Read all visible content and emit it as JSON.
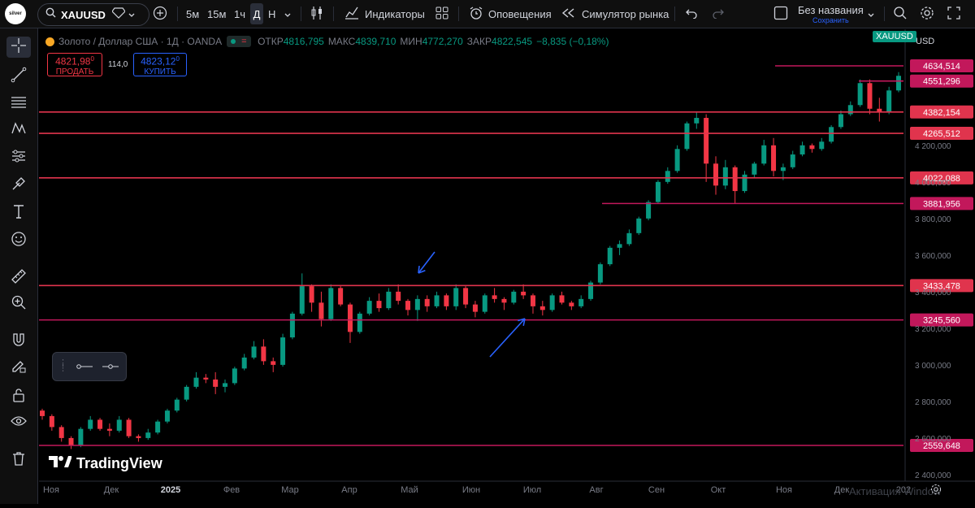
{
  "toolbar": {
    "logo_text": "silver\ncurrency",
    "symbol": "XAUUSD",
    "intervals": [
      "5м",
      "15м",
      "1ч",
      "Д",
      "Н"
    ],
    "active_interval": "Д",
    "indicators_label": "Индикаторы",
    "alerts_label": "Оповещения",
    "replay_label": "Симулятор рынка",
    "layout_name": "Без названия",
    "layout_status": "Сохранить"
  },
  "legend": {
    "title": "Золото / Доллар США · 1Д · OANDA",
    "open_label": "ОТКР",
    "open": "4816,795",
    "high_label": "МАКС",
    "high": "4839,710",
    "low_label": "МИН",
    "low": "4772,270",
    "close_label": "ЗАКР",
    "close": "4822,545",
    "change": "−8,835 (−0,18%)"
  },
  "trade": {
    "sell_price": "4821,98",
    "sell_sup": "0",
    "sell_label": "ПРОДАТЬ",
    "spread": "114,0",
    "buy_price": "4823,12",
    "buy_sup": "0",
    "buy_label": "КУПИТЬ"
  },
  "price_scale": {
    "symbol_tag": "XAUUSD",
    "currency": "USD"
  },
  "watermark": {
    "brand": "TradingView",
    "windows_notice": "Активация Window"
  },
  "colors": {
    "background": "#000000",
    "up": "#089981",
    "down": "#f23645",
    "red_level": "#e0344d",
    "magenta_level": "#c2185b",
    "arrow": "#2962ff"
  },
  "chart_data": {
    "type": "candlestick",
    "instrument": "XAUUSD",
    "timeframe": "1D",
    "ylim": [
      2340,
      4780
    ],
    "y_ticks": [
      2400,
      2600,
      2800,
      3000,
      3200,
      3400,
      3600,
      3800,
      4000,
      4200
    ],
    "x_ticks": [
      "Ноя",
      "Дек",
      "2025",
      "Фев",
      "Мар",
      "Апр",
      "Май",
      "Июн",
      "Июл",
      "Авг",
      "Сен",
      "Окт",
      "Ноя",
      "Дек",
      "202"
    ],
    "series": [
      {
        "values": [
          [
            2750,
            2760,
            2700,
            2720
          ],
          [
            2720,
            2730,
            2640,
            2660
          ],
          [
            2660,
            2670,
            2580,
            2600
          ],
          [
            2600,
            2610,
            2540,
            2560
          ],
          [
            2560,
            2660,
            2550,
            2650
          ],
          [
            2650,
            2720,
            2640,
            2700
          ],
          [
            2700,
            2710,
            2640,
            2650
          ],
          [
            2650,
            2680,
            2610,
            2640
          ],
          [
            2640,
            2720,
            2630,
            2700
          ],
          [
            2700,
            2710,
            2600,
            2610
          ],
          [
            2610,
            2620,
            2580,
            2600
          ],
          [
            2600,
            2650,
            2590,
            2630
          ],
          [
            2630,
            2700,
            2620,
            2690
          ],
          [
            2690,
            2760,
            2680,
            2750
          ],
          [
            2750,
            2820,
            2740,
            2810
          ],
          [
            2810,
            2890,
            2800,
            2880
          ],
          [
            2880,
            2960,
            2870,
            2930
          ],
          [
            2930,
            2950,
            2900,
            2920
          ],
          [
            2920,
            2960,
            2840,
            2880
          ],
          [
            2880,
            2920,
            2850,
            2900
          ],
          [
            2900,
            2990,
            2890,
            2980
          ],
          [
            2980,
            3060,
            2970,
            3040
          ],
          [
            3040,
            3130,
            3030,
            3100
          ],
          [
            3100,
            3140,
            3000,
            3020
          ],
          [
            3020,
            3040,
            2960,
            3000
          ],
          [
            3000,
            3170,
            2990,
            3150
          ],
          [
            3150,
            3290,
            3140,
            3280
          ],
          [
            3280,
            3500,
            3270,
            3430
          ],
          [
            3430,
            3440,
            3290,
            3340
          ],
          [
            3340,
            3400,
            3210,
            3250
          ],
          [
            3250,
            3440,
            3240,
            3420
          ],
          [
            3420,
            3430,
            3320,
            3330
          ],
          [
            3330,
            3340,
            3120,
            3180
          ],
          [
            3180,
            3290,
            3170,
            3280
          ],
          [
            3280,
            3370,
            3270,
            3350
          ],
          [
            3350,
            3390,
            3290,
            3310
          ],
          [
            3310,
            3420,
            3300,
            3400
          ],
          [
            3400,
            3440,
            3330,
            3350
          ],
          [
            3350,
            3360,
            3270,
            3300
          ],
          [
            3300,
            3380,
            3240,
            3360
          ],
          [
            3360,
            3380,
            3290,
            3320
          ],
          [
            3320,
            3400,
            3310,
            3380
          ],
          [
            3380,
            3390,
            3300,
            3320
          ],
          [
            3320,
            3440,
            3300,
            3420
          ],
          [
            3420,
            3430,
            3310,
            3330
          ],
          [
            3330,
            3350,
            3260,
            3290
          ],
          [
            3290,
            3390,
            3280,
            3380
          ],
          [
            3380,
            3420,
            3340,
            3360
          ],
          [
            3360,
            3370,
            3300,
            3340
          ],
          [
            3340,
            3410,
            3330,
            3400
          ],
          [
            3400,
            3440,
            3360,
            3380
          ],
          [
            3380,
            3390,
            3280,
            3320
          ],
          [
            3320,
            3350,
            3270,
            3300
          ],
          [
            3300,
            3390,
            3290,
            3380
          ],
          [
            3380,
            3400,
            3330,
            3340
          ],
          [
            3340,
            3350,
            3300,
            3320
          ],
          [
            3320,
            3380,
            3310,
            3360
          ],
          [
            3360,
            3460,
            3350,
            3450
          ],
          [
            3450,
            3560,
            3440,
            3550
          ],
          [
            3550,
            3650,
            3540,
            3640
          ],
          [
            3640,
            3680,
            3600,
            3660
          ],
          [
            3660,
            3740,
            3650,
            3720
          ],
          [
            3720,
            3810,
            3710,
            3800
          ],
          [
            3800,
            3900,
            3790,
            3890
          ],
          [
            3890,
            4010,
            3880,
            4000
          ],
          [
            4000,
            4080,
            3990,
            4060
          ],
          [
            4060,
            4200,
            4050,
            4180
          ],
          [
            4180,
            4330,
            4170,
            4320
          ],
          [
            4320,
            4380,
            4290,
            4350
          ],
          [
            4350,
            4370,
            4000,
            4100
          ],
          [
            4100,
            4140,
            3930,
            3980
          ],
          [
            3980,
            4120,
            3960,
            4080
          ],
          [
            4080,
            4090,
            3880,
            3950
          ],
          [
            3950,
            4060,
            3940,
            4040
          ],
          [
            4040,
            4110,
            4020,
            4100
          ],
          [
            4100,
            4230,
            4090,
            4200
          ],
          [
            4200,
            4240,
            4030,
            4060
          ],
          [
            4060,
            4100,
            4010,
            4080
          ],
          [
            4080,
            4170,
            4070,
            4150
          ],
          [
            4150,
            4220,
            4140,
            4200
          ],
          [
            4200,
            4210,
            4160,
            4180
          ],
          [
            4180,
            4240,
            4170,
            4220
          ],
          [
            4220,
            4310,
            4210,
            4300
          ],
          [
            4300,
            4390,
            4290,
            4370
          ],
          [
            4370,
            4440,
            4360,
            4420
          ],
          [
            4420,
            4560,
            4410,
            4540
          ],
          [
            4540,
            4560,
            4370,
            4400
          ],
          [
            4400,
            4460,
            4330,
            4380
          ],
          [
            4380,
            4520,
            4370,
            4500
          ],
          [
            4500,
            4600,
            4490,
            4580
          ]
        ]
      }
    ],
    "levels": [
      {
        "value": "4634,514",
        "color": "magenta"
      },
      {
        "value": "4551,296",
        "color": "magenta"
      },
      {
        "value": "4382,154",
        "color": "red"
      },
      {
        "value": "4265,512",
        "color": "red"
      },
      {
        "value": "4022,088",
        "color": "red"
      },
      {
        "value": "3881,956",
        "color": "magenta"
      },
      {
        "value": "3433,478",
        "color": "red"
      },
      {
        "value": "3245,560",
        "color": "magenta"
      },
      {
        "value": "2559,648",
        "color": "magenta"
      }
    ]
  }
}
